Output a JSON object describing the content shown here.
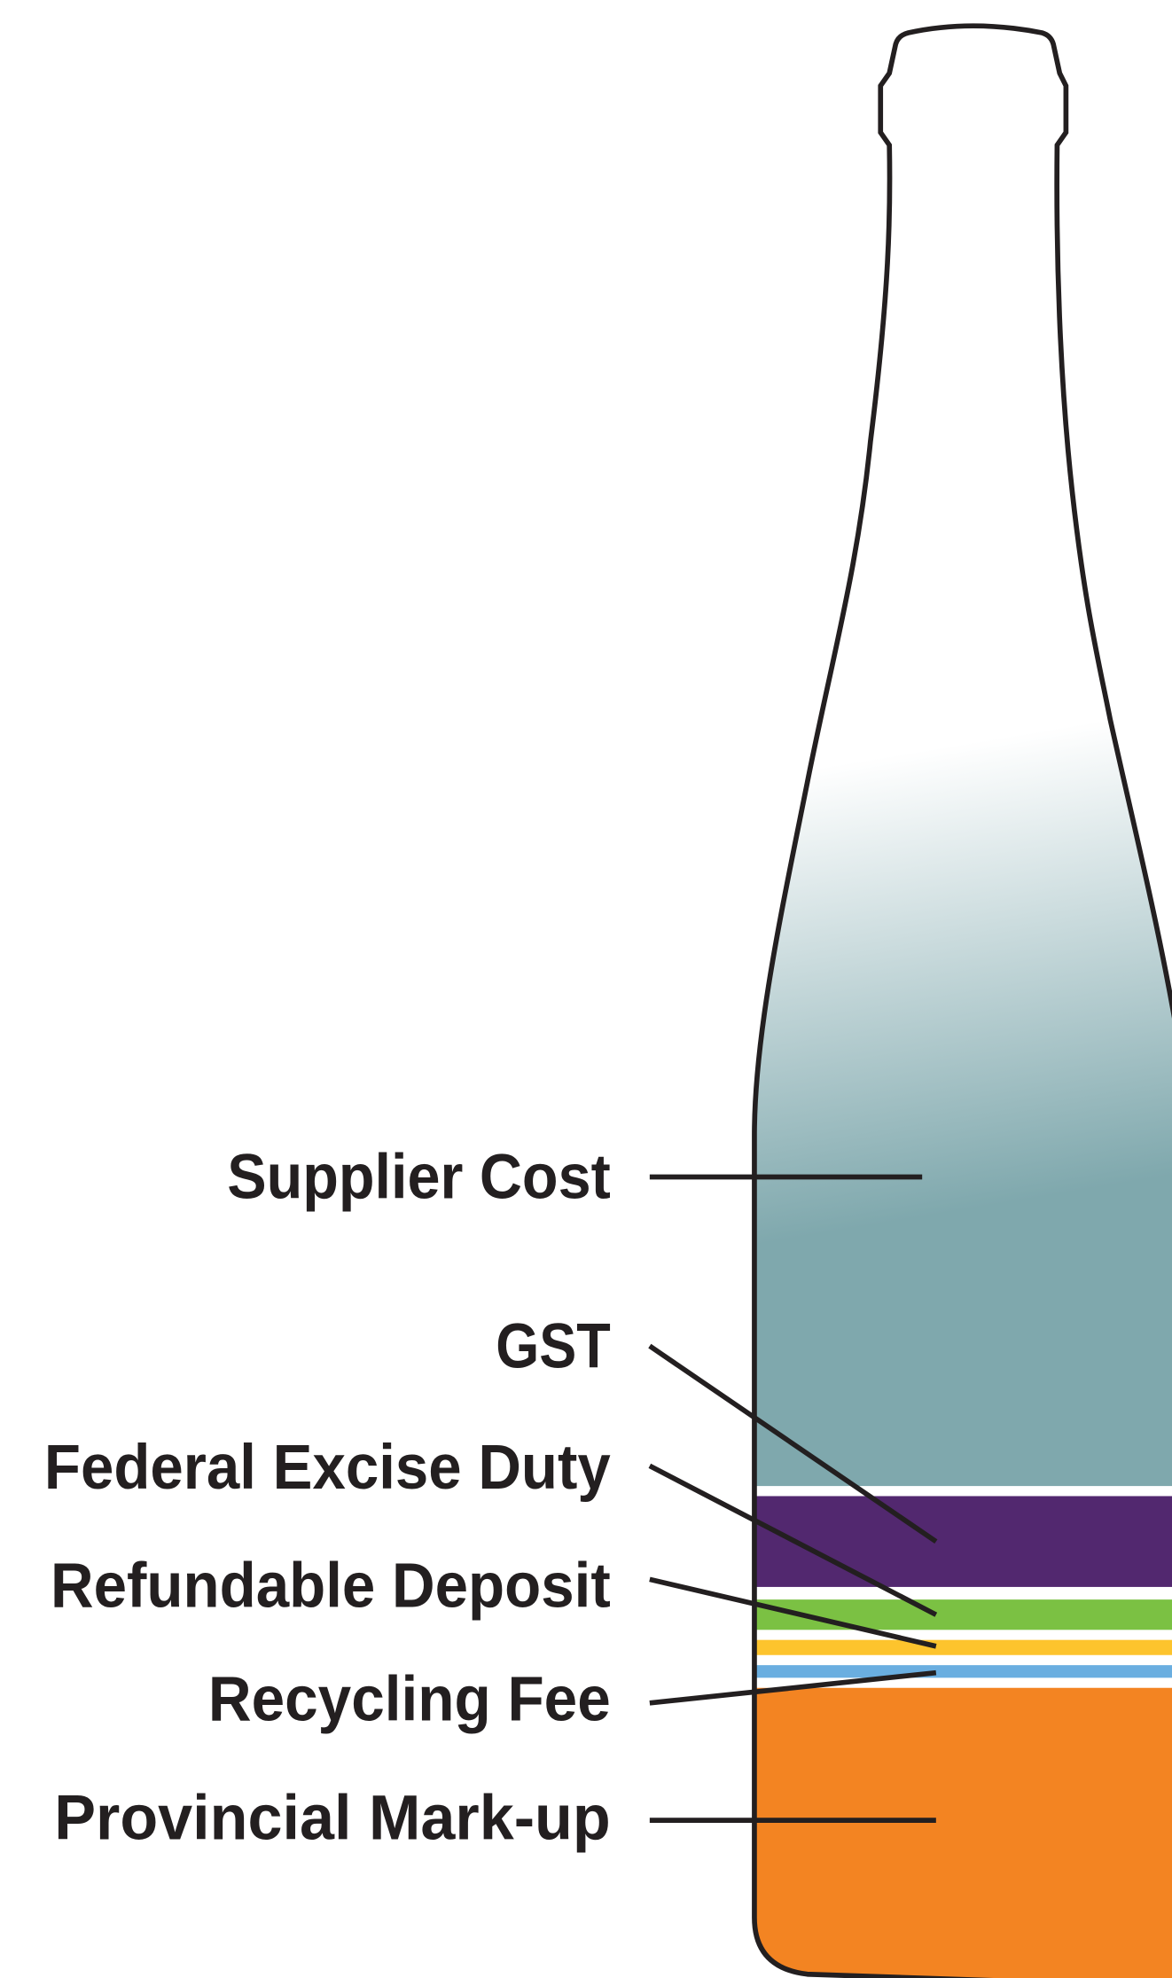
{
  "labels": [
    "Supplier Cost",
    "GST",
    "Federal Excise Duty",
    "Refundable Deposit",
    "Recycling Fee",
    "Provincial Mark-up"
  ]
}
